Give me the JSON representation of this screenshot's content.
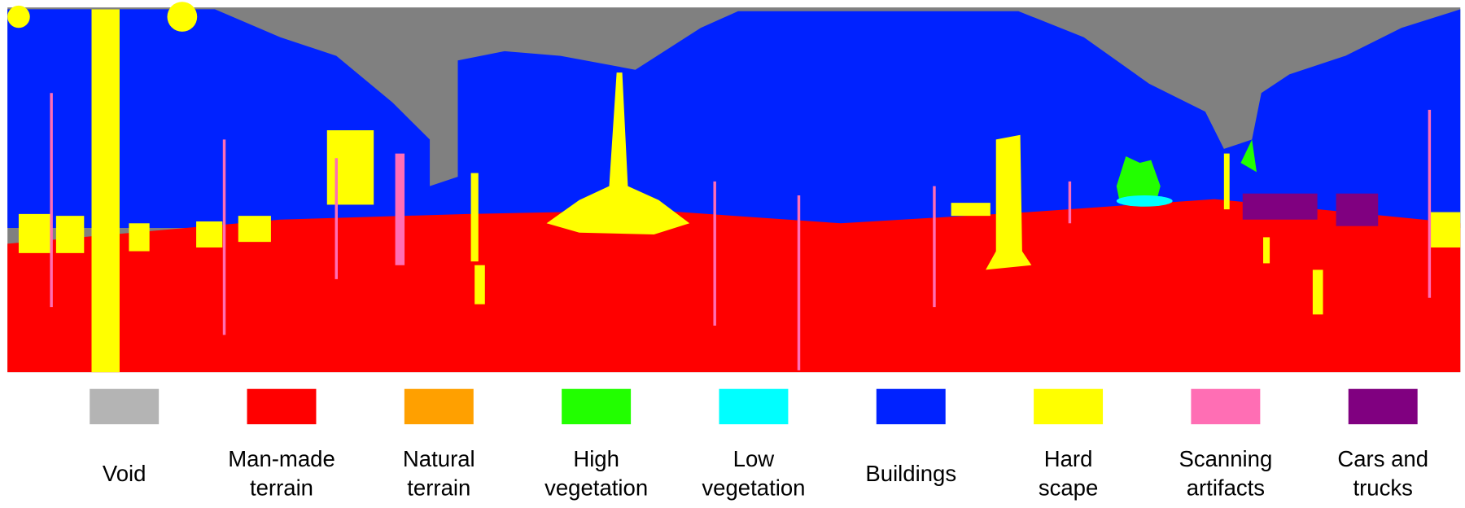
{
  "legend": {
    "items": [
      {
        "lines": [
          "Void"
        ],
        "color": "#b4b4b4"
      },
      {
        "lines": [
          "Man-made",
          "terrain"
        ],
        "color": "#ff0000"
      },
      {
        "lines": [
          "Natural",
          "terrain"
        ],
        "color": "#ffa000"
      },
      {
        "lines": [
          "High",
          "vegetation"
        ],
        "color": "#22ff00"
      },
      {
        "lines": [
          "Low",
          "vegetation"
        ],
        "color": "#00ffff"
      },
      {
        "lines": [
          "Buildings"
        ],
        "color": "#0022ff"
      },
      {
        "lines": [
          "Hard",
          "scape"
        ],
        "color": "#ffff00"
      },
      {
        "lines": [
          "Scanning",
          "artifacts"
        ],
        "color": "#ff6eb4"
      },
      {
        "lines": [
          "Cars and",
          "trucks"
        ],
        "color": "#800080"
      }
    ]
  }
}
